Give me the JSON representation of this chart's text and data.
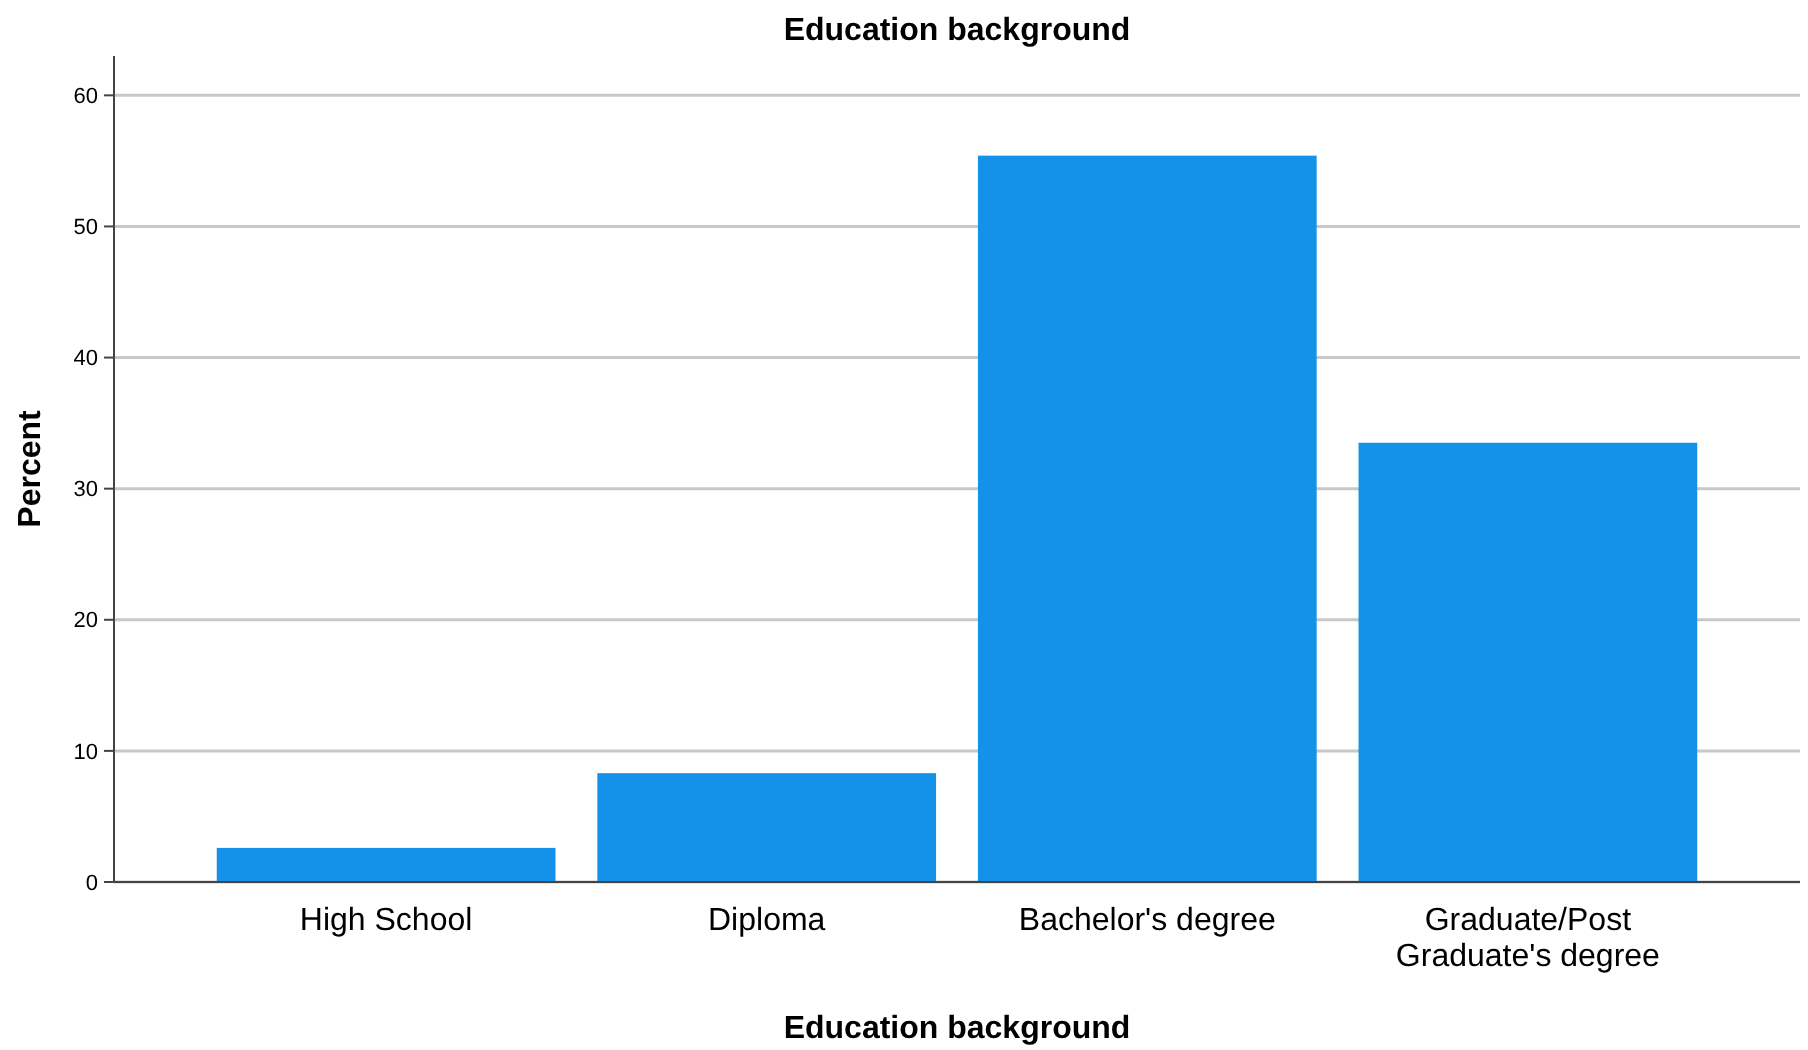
{
  "chart_data": {
    "type": "bar",
    "title": "Education background",
    "xlabel": "Education background",
    "ylabel": "Percent",
    "categories": [
      "High School",
      "Diploma",
      "Bachelor's degree",
      "Graduate/Post Graduate's degree"
    ],
    "values": [
      2.6,
      8.3,
      55.4,
      33.5
    ],
    "color": "#1491e8",
    "ylim": [
      0,
      63
    ],
    "yticks": [
      0,
      10,
      20,
      30,
      40,
      50,
      60
    ],
    "grid": "y"
  }
}
